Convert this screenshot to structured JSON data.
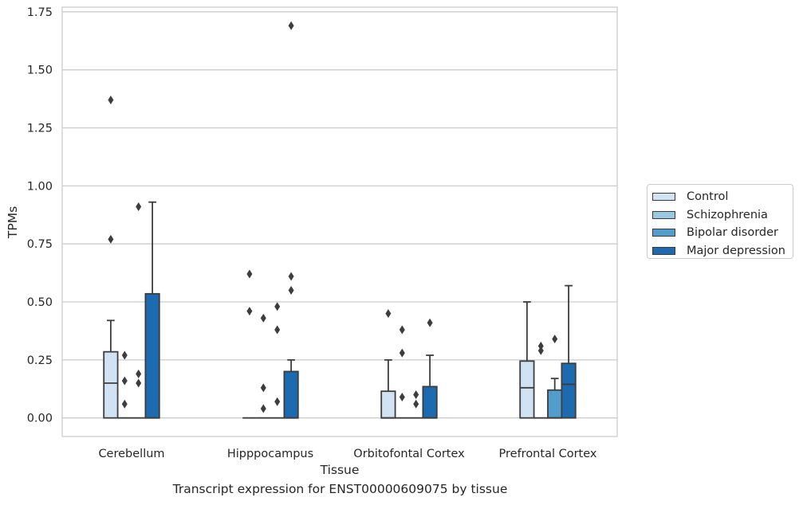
{
  "chart_data": {
    "type": "box",
    "xlabel": "Tissue",
    "ylabel": "TPMs",
    "caption": "Transcript expression for ENST00000609075 by tissue",
    "categories": [
      "Cerebellum",
      "Hipppocampus",
      "Orbitofontal Cortex",
      "Prefrontal Cortex"
    ],
    "ylim": [
      -0.08,
      1.77
    ],
    "yticks": [
      0.0,
      0.25,
      0.5,
      0.75,
      1.0,
      1.25,
      1.5,
      1.75
    ],
    "ytick_labels": [
      "0.00",
      "0.25",
      "0.50",
      "0.75",
      "1.00",
      "1.25",
      "1.50",
      "1.75"
    ],
    "grid": "horizontal",
    "legend_position": "right",
    "series": [
      {
        "name": "Control",
        "color": "#d1e2f2",
        "boxes": [
          {
            "min": 0.0,
            "q1": 0.0,
            "median": 0.15,
            "q3": 0.285,
            "max": 0.42,
            "outliers": [
              0.77,
              1.37
            ]
          },
          {
            "min": 0.0,
            "q1": 0.0,
            "median": 0.0,
            "q3": 0.0,
            "max": 0.0,
            "outliers": [
              0.46,
              0.62
            ]
          },
          {
            "min": 0.0,
            "q1": 0.0,
            "median": 0.0,
            "q3": 0.115,
            "max": 0.25,
            "outliers": [
              0.45
            ]
          },
          {
            "min": 0.0,
            "q1": 0.0,
            "median": 0.13,
            "q3": 0.245,
            "max": 0.5,
            "outliers": []
          }
        ]
      },
      {
        "name": "Schizophrenia",
        "color": "#9ac8e0",
        "boxes": [
          {
            "min": 0.0,
            "q1": 0.0,
            "median": 0.0,
            "q3": 0.0,
            "max": 0.0,
            "outliers": [
              0.06,
              0.16,
              0.27
            ]
          },
          {
            "min": 0.0,
            "q1": 0.0,
            "median": 0.0,
            "q3": 0.0,
            "max": 0.0,
            "outliers": [
              0.04,
              0.13,
              0.43
            ]
          },
          {
            "min": 0.0,
            "q1": 0.0,
            "median": 0.0,
            "q3": 0.0,
            "max": 0.0,
            "outliers": [
              0.09,
              0.28,
              0.38
            ]
          },
          {
            "min": 0.0,
            "q1": 0.0,
            "median": 0.0,
            "q3": 0.0,
            "max": 0.0,
            "outliers": [
              0.29,
              0.31
            ]
          }
        ]
      },
      {
        "name": "Bipolar disorder",
        "color": "#529dcc",
        "boxes": [
          {
            "min": 0.0,
            "q1": 0.0,
            "median": 0.0,
            "q3": 0.0,
            "max": 0.0,
            "outliers": [
              0.15,
              0.19,
              0.91
            ]
          },
          {
            "min": 0.0,
            "q1": 0.0,
            "median": 0.0,
            "q3": 0.0,
            "max": 0.0,
            "outliers": [
              0.07,
              0.38,
              0.48
            ]
          },
          {
            "min": 0.0,
            "q1": 0.0,
            "median": 0.0,
            "q3": 0.0,
            "max": 0.0,
            "outliers": [
              0.06,
              0.1
            ]
          },
          {
            "min": 0.0,
            "q1": 0.0,
            "median": 0.0,
            "q3": 0.12,
            "max": 0.17,
            "outliers": [
              0.34
            ]
          }
        ]
      },
      {
        "name": "Major depression",
        "color": "#1c6aaf",
        "boxes": [
          {
            "min": 0.0,
            "q1": 0.0,
            "median": 0.0,
            "q3": 0.535,
            "max": 0.93,
            "outliers": []
          },
          {
            "min": 0.0,
            "q1": 0.0,
            "median": 0.0,
            "q3": 0.2,
            "max": 0.25,
            "outliers": [
              0.55,
              0.61,
              1.69
            ]
          },
          {
            "min": 0.0,
            "q1": 0.0,
            "median": 0.0,
            "q3": 0.135,
            "max": 0.27,
            "outliers": [
              0.41
            ]
          },
          {
            "min": 0.0,
            "q1": 0.0,
            "median": 0.145,
            "q3": 0.235,
            "max": 0.57,
            "outliers": []
          }
        ]
      }
    ]
  }
}
